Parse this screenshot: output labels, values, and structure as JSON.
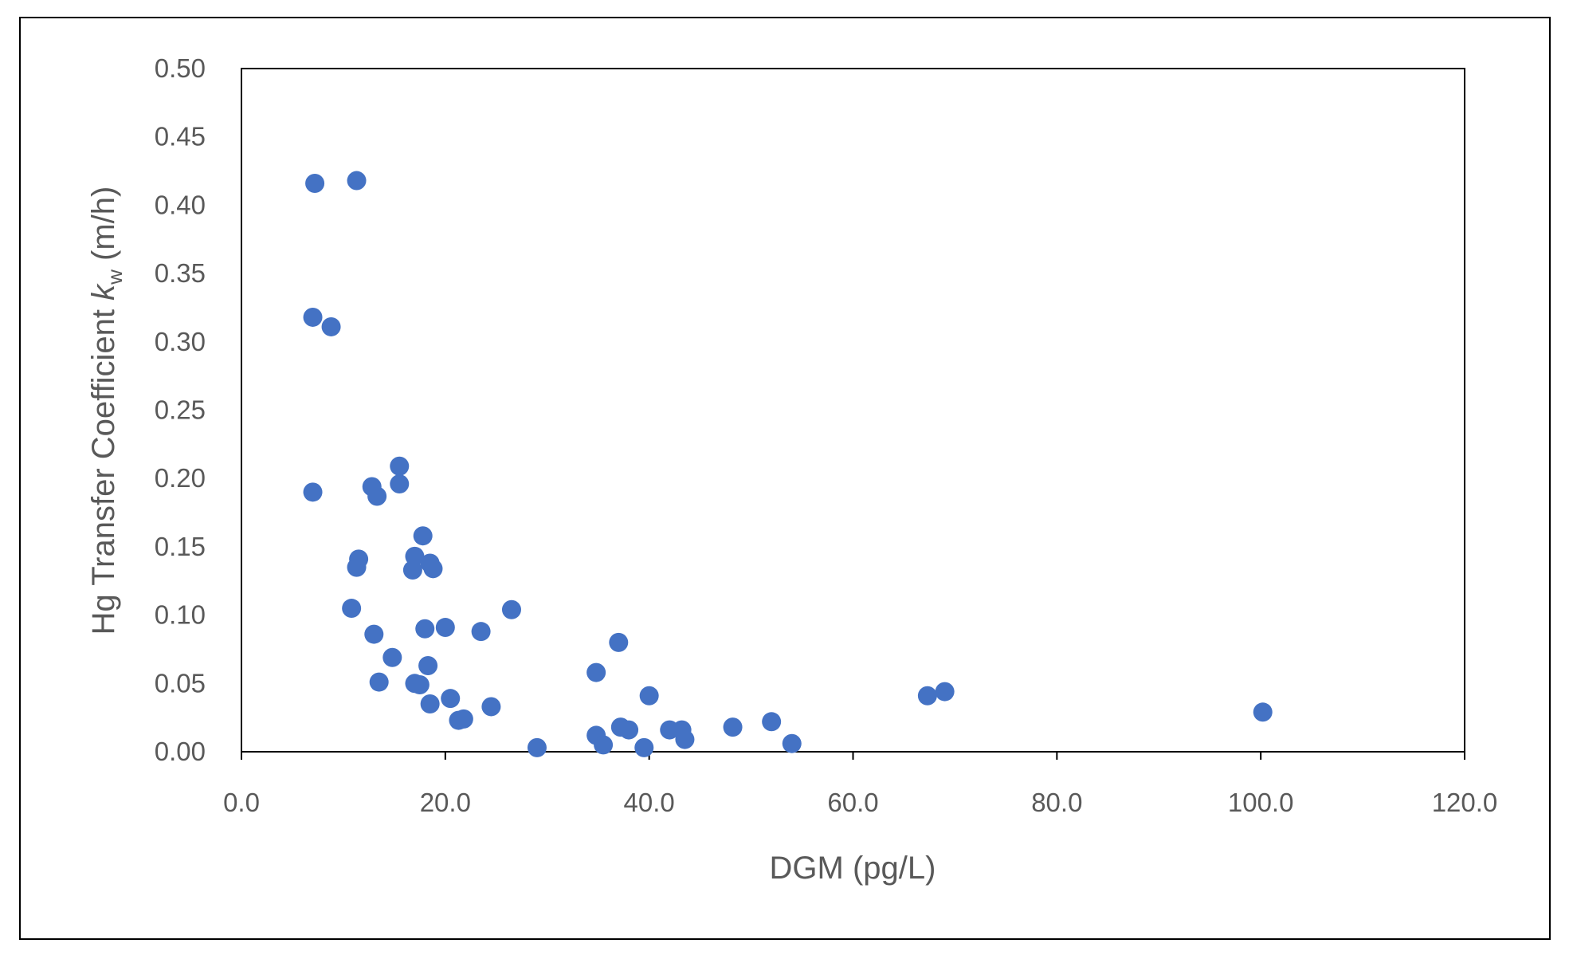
{
  "chart_data": {
    "type": "scatter",
    "title": "",
    "xlabel": "DGM (pg/L)",
    "ylabel_prefix": "Hg Transfer Coefficient ",
    "ylabel_symbol": "k",
    "ylabel_subscript": "w",
    "ylabel_suffix": " (m/h)",
    "xlim": [
      0,
      120
    ],
    "ylim": [
      0,
      0.5
    ],
    "xticks": [
      0,
      20,
      40,
      60,
      80,
      100,
      120
    ],
    "yticks": [
      0,
      0.05,
      0.1,
      0.15,
      0.2,
      0.25,
      0.3,
      0.35,
      0.4,
      0.45,
      0.5
    ],
    "xtick_labels": [
      "0.0",
      "20.0",
      "40.0",
      "60.0",
      "80.0",
      "100.0",
      "120.0"
    ],
    "ytick_labels": [
      "0.00",
      "0.05",
      "0.10",
      "0.15",
      "0.20",
      "0.25",
      "0.30",
      "0.35",
      "0.40",
      "0.45",
      "0.50"
    ],
    "grid": false,
    "legend": "none",
    "marker_color": "#4472C4",
    "series": [
      {
        "points": [
          [
            7.2,
            0.416
          ],
          [
            11.3,
            0.418
          ],
          [
            7.0,
            0.318
          ],
          [
            8.8,
            0.311
          ],
          [
            7.0,
            0.19
          ],
          [
            15.5,
            0.209
          ],
          [
            12.8,
            0.194
          ],
          [
            13.3,
            0.187
          ],
          [
            15.5,
            0.196
          ],
          [
            17.8,
            0.158
          ],
          [
            11.5,
            0.141
          ],
          [
            11.3,
            0.135
          ],
          [
            17.0,
            0.143
          ],
          [
            16.8,
            0.133
          ],
          [
            18.5,
            0.138
          ],
          [
            18.8,
            0.134
          ],
          [
            10.8,
            0.105
          ],
          [
            26.5,
            0.104
          ],
          [
            13.0,
            0.086
          ],
          [
            18.0,
            0.09
          ],
          [
            20.0,
            0.091
          ],
          [
            23.5,
            0.088
          ],
          [
            37.0,
            0.08
          ],
          [
            14.8,
            0.069
          ],
          [
            18.3,
            0.063
          ],
          [
            34.8,
            0.058
          ],
          [
            13.5,
            0.051
          ],
          [
            17.0,
            0.05
          ],
          [
            17.5,
            0.049
          ],
          [
            40.0,
            0.041
          ],
          [
            67.3,
            0.041
          ],
          [
            69.0,
            0.044
          ],
          [
            20.5,
            0.039
          ],
          [
            18.5,
            0.035
          ],
          [
            24.5,
            0.033
          ],
          [
            21.3,
            0.023
          ],
          [
            21.8,
            0.024
          ],
          [
            100.2,
            0.029
          ],
          [
            52.0,
            0.022
          ],
          [
            48.2,
            0.018
          ],
          [
            37.2,
            0.018
          ],
          [
            38.0,
            0.016
          ],
          [
            42.0,
            0.016
          ],
          [
            43.2,
            0.016
          ],
          [
            34.8,
            0.012
          ],
          [
            43.5,
            0.009
          ],
          [
            35.5,
            0.005
          ],
          [
            54.0,
            0.006
          ],
          [
            29.0,
            0.003
          ],
          [
            39.5,
            0.003
          ]
        ]
      }
    ]
  }
}
